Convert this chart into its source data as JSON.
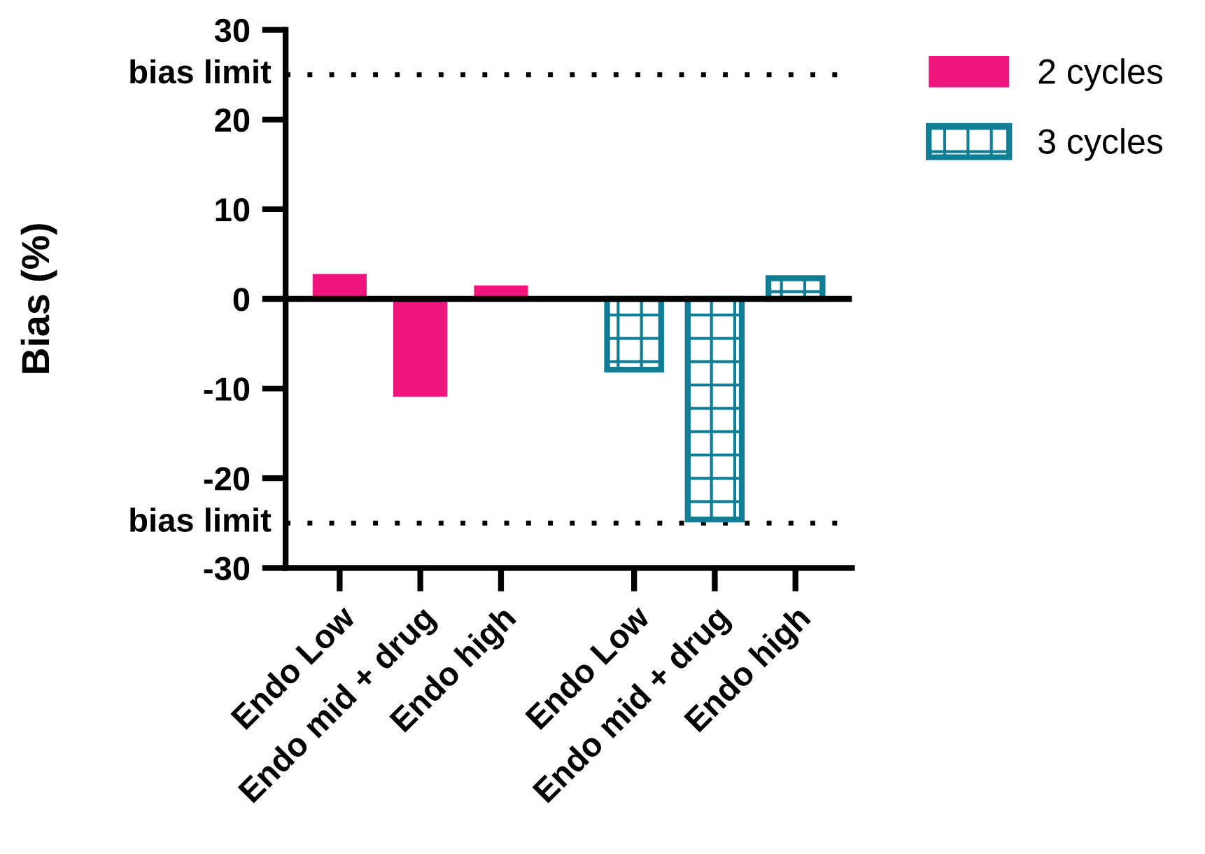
{
  "chart_data": {
    "type": "bar",
    "ylabel": "Bias (%)",
    "categories": [
      "Endo Low",
      "Endo mid + drug",
      "Endo high",
      "Endo Low",
      "Endo mid + drug",
      "Endo high"
    ],
    "series": [
      {
        "name": "2 cycles",
        "color": "#f0167d",
        "values": [
          2.8,
          -10.9,
          1.5,
          null,
          null,
          null
        ]
      },
      {
        "name": "3 cycles",
        "color": "#117e95",
        "values": [
          null,
          null,
          null,
          -7.9,
          -24.6,
          2.3
        ]
      }
    ],
    "ylim": [
      -30,
      30
    ],
    "yticks": [
      -30,
      -20,
      -10,
      0,
      10,
      20,
      30
    ],
    "ref_lines": [
      {
        "axis": "y",
        "value": 25,
        "label": "bias limit",
        "line_style": "dotted"
      },
      {
        "axis": "y",
        "value": -25,
        "label": "bias limit",
        "line_style": "dotted"
      }
    ],
    "legend": "top right"
  }
}
